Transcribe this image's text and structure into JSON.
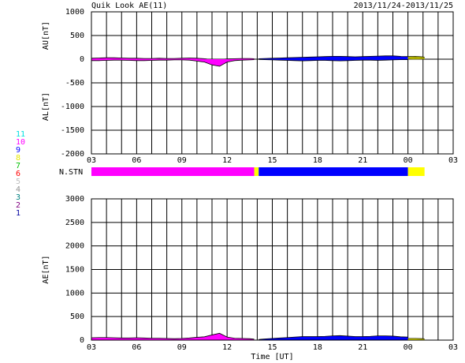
{
  "chart_data": [
    {
      "type": "area",
      "title": "Quik Look AE(11)",
      "subtitle": "2013/11/24-2013/11/25",
      "ylabels": [
        "AU[nT]",
        "AL[nT]"
      ],
      "xlim": [
        3,
        27
      ],
      "xticks": [
        {
          "value": 3,
          "label": "03"
        },
        {
          "value": 6,
          "label": "06"
        },
        {
          "value": 9,
          "label": "09"
        },
        12,
        15,
        18,
        21,
        {
          "value": 24,
          "label": "00"
        },
        {
          "value": 27,
          "label": "03"
        }
      ],
      "xminorticks": [
        4,
        5,
        7,
        8,
        10,
        11,
        13,
        14,
        16,
        17,
        19,
        20,
        22,
        23,
        25,
        26
      ],
      "ylim": [
        -2000,
        1000
      ],
      "yticks": [
        -2000,
        -1500,
        -1000,
        -500,
        0,
        500,
        1000
      ],
      "grid": true,
      "segments": [
        {
          "color": "#ff00ff",
          "x": [
            3,
            3.5,
            4,
            4.5,
            5,
            5.5,
            6,
            6.5,
            7,
            7.5,
            8,
            8.5,
            9,
            9.5,
            10,
            10.5,
            11,
            11.5,
            12,
            12.5,
            13,
            13.5,
            13.8
          ],
          "au": [
            20,
            25,
            30,
            30,
            25,
            20,
            20,
            15,
            15,
            20,
            15,
            15,
            20,
            25,
            20,
            10,
            -10,
            -5,
            5,
            10,
            15,
            15,
            10
          ],
          "al": [
            -30,
            -30,
            -25,
            -20,
            -20,
            -25,
            -30,
            -30,
            -25,
            -20,
            -20,
            -15,
            -15,
            -20,
            -40,
            -60,
            -120,
            -150,
            -60,
            -30,
            -20,
            -15,
            -10
          ]
        },
        {
          "color": "#0000ff",
          "x": [
            14.1,
            14.5,
            15,
            15.5,
            16,
            16.5,
            17,
            17.5,
            18,
            18.5,
            19,
            19.5,
            20,
            20.5,
            21,
            21.5,
            22,
            22.5,
            23,
            23.5,
            24
          ],
          "au": [
            10,
            15,
            20,
            25,
            30,
            35,
            40,
            45,
            50,
            55,
            60,
            60,
            55,
            50,
            55,
            60,
            65,
            70,
            70,
            60,
            55
          ],
          "al": [
            -5,
            -10,
            -15,
            -20,
            -25,
            -30,
            -35,
            -30,
            -25,
            -25,
            -30,
            -35,
            -30,
            -25,
            -20,
            -20,
            -25,
            -20,
            -15,
            -10,
            -10
          ]
        },
        {
          "color": "#ffff00",
          "x": [
            24,
            24.5,
            25,
            25.1
          ],
          "au": [
            55,
            60,
            50,
            40
          ],
          "al": [
            20,
            25,
            20,
            15
          ]
        }
      ]
    },
    {
      "type": "area",
      "ylabel": "AE[nT]",
      "xlabel": "Time [UT]",
      "xlim": [
        3,
        27
      ],
      "xticks": [
        {
          "value": 3,
          "label": "03"
        },
        {
          "value": 6,
          "label": "06"
        },
        {
          "value": 9,
          "label": "09"
        },
        12,
        15,
        18,
        21,
        {
          "value": 24,
          "label": "00"
        },
        {
          "value": 27,
          "label": "03"
        }
      ],
      "xminorticks": [
        4,
        5,
        7,
        8,
        10,
        11,
        13,
        14,
        16,
        17,
        19,
        20,
        22,
        23,
        25,
        26
      ],
      "ylim": [
        0,
        3000
      ],
      "yticks": [
        0,
        500,
        1000,
        1500,
        2000,
        2500,
        3000
      ],
      "grid": true,
      "segments": [
        {
          "color": "#ff00ff",
          "x": [
            3,
            3.5,
            4,
            4.5,
            5,
            5.5,
            6,
            6.5,
            7,
            7.5,
            8,
            8.5,
            9,
            9.5,
            10,
            10.5,
            11,
            11.5,
            12,
            12.5,
            13,
            13.5,
            13.8
          ],
          "values": [
            50,
            55,
            55,
            50,
            45,
            45,
            50,
            45,
            40,
            40,
            35,
            30,
            35,
            45,
            60,
            70,
            110,
            145,
            65,
            40,
            35,
            30,
            20
          ]
        },
        {
          "color": "#0000ff",
          "x": [
            14.1,
            14.5,
            15,
            15.5,
            16,
            16.5,
            17,
            17.5,
            18,
            18.5,
            19,
            19.5,
            20,
            20.5,
            21,
            21.5,
            22,
            22.5,
            23,
            23.5,
            24
          ],
          "values": [
            15,
            25,
            35,
            45,
            55,
            65,
            75,
            75,
            75,
            80,
            90,
            95,
            85,
            75,
            75,
            80,
            90,
            90,
            85,
            70,
            65
          ]
        },
        {
          "color": "#ffff00",
          "x": [
            24,
            24.5,
            25,
            25.1
          ],
          "values": [
            35,
            35,
            30,
            25
          ]
        }
      ]
    }
  ],
  "station_bar": {
    "label": "N.STN",
    "segments": [
      {
        "start": 3,
        "end": 13.8,
        "color": "#ff00ff"
      },
      {
        "start": 13.8,
        "end": 14.1,
        "color": "#ffff00"
      },
      {
        "start": 14.1,
        "end": 24,
        "color": "#0000ff"
      },
      {
        "start": 24,
        "end": 25.1,
        "color": "#ffff00"
      }
    ]
  },
  "station_legend": [
    {
      "label": "11",
      "color": "#00e0e0"
    },
    {
      "label": "10",
      "color": "#ff00ff"
    },
    {
      "label": "9",
      "color": "#0000ff"
    },
    {
      "label": "8",
      "color": "#e8e800"
    },
    {
      "label": "7",
      "color": "#00c000"
    },
    {
      "label": "6",
      "color": "#ff0000"
    },
    {
      "label": "5",
      "color": "#c0c0c0"
    },
    {
      "label": "4",
      "color": "#909090"
    },
    {
      "label": "3",
      "color": "#008080"
    },
    {
      "label": "2",
      "color": "#800080"
    },
    {
      "label": "1",
      "color": "#0000a0"
    }
  ]
}
